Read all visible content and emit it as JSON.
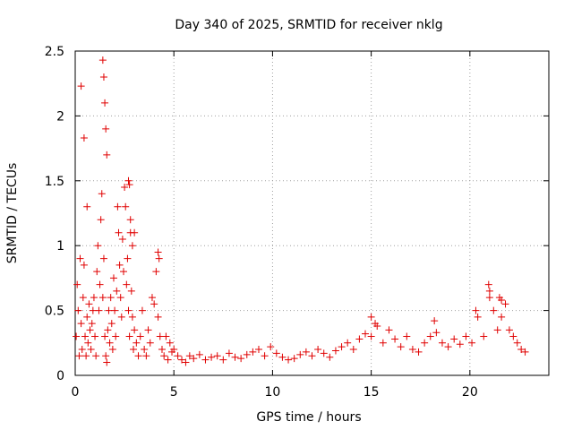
{
  "chart_data": {
    "type": "scatter",
    "title": "Day 340 of 2025, SRMTID for receiver nklg",
    "xlabel": "GPS time / hours",
    "ylabel": "SRMTID / TECUs",
    "xlim": [
      0,
      24
    ],
    "ylim": [
      0,
      2.5
    ],
    "xticks": [
      0,
      5,
      10,
      15,
      20
    ],
    "xtick_labels": [
      "0",
      "5",
      "10",
      "15",
      "20"
    ],
    "yticks": [
      0,
      0.5,
      1,
      1.5,
      2,
      2.5
    ],
    "ytick_labels": [
      "0",
      "0.5",
      "1",
      "1.5",
      "2",
      "2.5"
    ],
    "grid": true,
    "marker": "+",
    "series": [
      {
        "name": "SRMTID",
        "color": "#e00000",
        "x": [
          0.05,
          0.1,
          0.15,
          0.2,
          0.25,
          0.3,
          0.35,
          0.4,
          0.45,
          0.5,
          0.55,
          0.6,
          0.65,
          0.7,
          0.75,
          0.8,
          0.85,
          0.9,
          0.95,
          1.0,
          1.05,
          1.1,
          1.15,
          1.2,
          1.25,
          1.3,
          1.35,
          1.4,
          1.45,
          1.5,
          1.55,
          1.6,
          1.65,
          1.7,
          1.75,
          1.8,
          1.85,
          1.9,
          1.95,
          2.0,
          2.05,
          2.1,
          2.15,
          2.2,
          2.25,
          2.3,
          2.35,
          2.4,
          2.45,
          2.5,
          2.55,
          2.6,
          2.65,
          2.7,
          2.75,
          2.8,
          2.85,
          2.9,
          2.95,
          3.0,
          3.1,
          3.2,
          3.3,
          3.4,
          3.5,
          3.6,
          3.7,
          3.8,
          3.9,
          4.0,
          4.1,
          4.2,
          4.3,
          4.4,
          4.5,
          4.6,
          4.7,
          4.8,
          4.9,
          5.0,
          5.2,
          5.4,
          5.6,
          5.8,
          6.0,
          6.3,
          6.6,
          6.9,
          7.2,
          7.5,
          7.8,
          8.1,
          8.4,
          8.7,
          9.0,
          9.3,
          9.6,
          9.9,
          10.2,
          10.5,
          10.8,
          11.1,
          11.4,
          11.7,
          12.0,
          12.3,
          12.6,
          12.9,
          13.2,
          13.5,
          13.8,
          14.1,
          14.4,
          14.7,
          15.0,
          15.3,
          15.6,
          15.9,
          16.2,
          16.5,
          16.8,
          17.1,
          17.4,
          17.7,
          18.0,
          18.3,
          18.6,
          18.9,
          19.2,
          19.5,
          19.8,
          20.1,
          20.4,
          20.7,
          21.0,
          21.2,
          21.4,
          21.6,
          21.8,
          22.0,
          22.2,
          22.4,
          22.6,
          22.8,
          0.3,
          0.45,
          0.6,
          1.4,
          1.45,
          1.5,
          1.55,
          1.6,
          2.7,
          2.75,
          2.8,
          2.9,
          3.0,
          4.2,
          4.25,
          20.95,
          21.0,
          21.5,
          21.6,
          15.0,
          15.2,
          18.2,
          20.3
        ],
        "y": [
          0.3,
          0.7,
          0.5,
          0.15,
          0.9,
          0.4,
          0.2,
          0.6,
          0.85,
          0.3,
          0.15,
          0.45,
          0.25,
          0.55,
          0.35,
          0.2,
          0.4,
          0.5,
          0.6,
          0.3,
          0.15,
          0.8,
          1.0,
          0.5,
          0.7,
          1.2,
          1.4,
          0.6,
          0.9,
          0.3,
          0.15,
          0.1,
          0.35,
          0.5,
          0.25,
          0.6,
          0.4,
          0.2,
          0.75,
          0.5,
          0.3,
          0.65,
          1.3,
          1.1,
          0.85,
          0.6,
          0.45,
          1.05,
          0.8,
          1.45,
          1.3,
          0.7,
          0.9,
          0.5,
          0.3,
          1.1,
          0.65,
          0.45,
          0.2,
          0.35,
          0.25,
          0.15,
          0.3,
          0.5,
          0.2,
          0.15,
          0.35,
          0.25,
          0.6,
          0.55,
          0.8,
          0.45,
          0.3,
          0.2,
          0.15,
          0.3,
          0.12,
          0.25,
          0.18,
          0.2,
          0.15,
          0.12,
          0.1,
          0.15,
          0.13,
          0.16,
          0.12,
          0.14,
          0.15,
          0.12,
          0.17,
          0.14,
          0.13,
          0.16,
          0.18,
          0.2,
          0.15,
          0.22,
          0.17,
          0.14,
          0.12,
          0.13,
          0.16,
          0.18,
          0.15,
          0.2,
          0.17,
          0.14,
          0.19,
          0.22,
          0.25,
          0.2,
          0.28,
          0.32,
          0.3,
          0.38,
          0.25,
          0.35,
          0.28,
          0.22,
          0.3,
          0.2,
          0.18,
          0.25,
          0.3,
          0.33,
          0.25,
          0.22,
          0.28,
          0.24,
          0.3,
          0.25,
          0.45,
          0.3,
          0.6,
          0.5,
          0.35,
          0.45,
          0.55,
          0.35,
          0.3,
          0.25,
          0.2,
          0.18,
          2.23,
          1.83,
          1.3,
          2.43,
          2.3,
          2.1,
          1.9,
          1.7,
          1.5,
          1.47,
          1.2,
          1.0,
          1.1,
          0.95,
          0.9,
          0.7,
          0.65,
          0.6,
          0.58,
          0.45,
          0.4,
          0.42,
          0.5
        ]
      }
    ]
  }
}
